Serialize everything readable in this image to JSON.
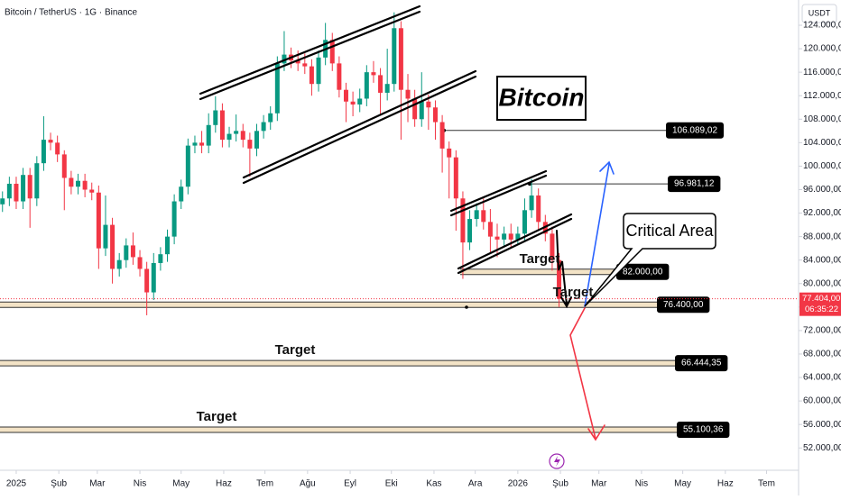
{
  "chart_data": {
    "type": "candlestick",
    "title": "Bitcoin / TetherUS · 1G · Binance",
    "currency": "USDT",
    "up_color": "#089981",
    "down_color": "#f23645",
    "x": [
      -10,
      -5,
      0,
      5,
      10,
      15,
      20,
      25,
      30,
      35,
      40,
      45,
      50,
      55,
      60,
      65,
      70,
      75,
      80,
      85,
      90,
      95,
      100,
      105,
      110,
      115,
      120,
      125,
      130,
      135,
      140,
      145,
      150,
      155,
      160,
      165,
      170,
      175,
      180,
      185,
      190,
      195,
      200,
      205,
      210,
      215,
      220,
      225,
      230,
      235,
      240,
      245,
      250,
      255,
      260,
      265,
      270,
      275,
      280,
      285,
      290,
      295,
      300,
      305,
      310,
      315,
      320,
      325,
      330,
      335,
      340,
      345,
      350,
      355,
      360,
      365,
      370,
      375,
      380,
      385,
      390,
      395
    ],
    "open": [
      93500,
      94500,
      97000,
      94000,
      98500,
      94500,
      100500,
      104500,
      104000,
      102000,
      98000,
      96500,
      97500,
      96000,
      95500,
      86000,
      90000,
      82500,
      84000,
      86500,
      84500,
      82500,
      78500,
      83500,
      85000,
      88000,
      94000,
      96500,
      103500,
      104000,
      103500,
      107000,
      109500,
      104500,
      105500,
      106000,
      104500,
      103000,
      106000,
      107500,
      109000,
      117500,
      119000,
      118000,
      117500,
      117000,
      114000,
      118500,
      121500,
      117500,
      113000,
      111000,
      110500,
      111500,
      116000,
      115500,
      112500,
      114000,
      123500,
      113000,
      111500,
      108000,
      111000,
      110000,
      107500,
      103000,
      101500,
      94500,
      87000,
      91000,
      92500,
      90500,
      88000,
      87500,
      88500,
      87500,
      88500,
      92500,
      95000,
      90500,
      88500,
      84000
    ],
    "high": [
      95700,
      98200,
      98200,
      99700,
      99700,
      101700,
      108500,
      105700,
      105200,
      102700,
      99200,
      98700,
      98700,
      97200,
      96700,
      95000,
      91200,
      85200,
      87700,
      88700,
      85700,
      83700,
      85200,
      86200,
      89200,
      95200,
      97700,
      104700,
      105200,
      106000,
      109000,
      111900,
      110700,
      106700,
      108800,
      107200,
      105700,
      107200,
      108700,
      110200,
      118700,
      123000,
      120200,
      119700,
      119200,
      118200,
      119700,
      124400,
      122700,
      118700,
      114200,
      112700,
      113200,
      117200,
      117900,
      116700,
      120000,
      126200,
      124700,
      115700,
      113000,
      116000,
      112200,
      111200,
      108700,
      104200,
      102700,
      95700,
      92500,
      93700,
      94500,
      92700,
      90200,
      89700,
      90200,
      89700,
      94500,
      97800,
      96200,
      91700,
      89700,
      85200
    ],
    "low": [
      92200,
      93200,
      92700,
      92700,
      89500,
      93200,
      99200,
      102700,
      100700,
      92500,
      95200,
      95200,
      94700,
      94200,
      82500,
      84700,
      80000,
      81200,
      82700,
      83200,
      81200,
      74600,
      77200,
      82200,
      83700,
      86700,
      92700,
      95200,
      102200,
      102200,
      102200,
      105700,
      103200,
      103200,
      104200,
      103200,
      98200,
      101700,
      104700,
      106200,
      107700,
      116200,
      116700,
      116200,
      115700,
      112000,
      112700,
      117200,
      116200,
      111700,
      107500,
      108500,
      109200,
      110200,
      114200,
      108700,
      111200,
      112700,
      104500,
      107500,
      106700,
      106700,
      106200,
      104500,
      98900,
      94500,
      89000,
      80800,
      85700,
      89700,
      89200,
      85200,
      84500,
      86200,
      86200,
      86700,
      87200,
      91200,
      89200,
      87200,
      82200,
      76000
    ],
    "close": [
      94500,
      97000,
      94000,
      98500,
      94500,
      100500,
      104500,
      104000,
      102000,
      98000,
      96500,
      97500,
      96000,
      95500,
      86000,
      90000,
      82500,
      84000,
      86500,
      84500,
      82500,
      78500,
      83500,
      85000,
      88000,
      94000,
      96500,
      103500,
      104000,
      103500,
      107000,
      109500,
      104500,
      105500,
      106000,
      104500,
      103000,
      106000,
      107500,
      109000,
      117500,
      119000,
      118000,
      117500,
      117000,
      114000,
      118500,
      121500,
      117500,
      113000,
      111000,
      110500,
      111500,
      116000,
      115500,
      112500,
      114000,
      123500,
      113000,
      111500,
      108000,
      111000,
      110000,
      107500,
      103000,
      101500,
      94500,
      87000,
      91000,
      92500,
      90500,
      88000,
      87500,
      88500,
      87500,
      88500,
      92500,
      95000,
      90500,
      88500,
      84000,
      77404
    ],
    "xlim": [
      -11.8,
      569.3
    ],
    "xticks": [
      {
        "value": 0,
        "label": "2025"
      },
      {
        "value": 31,
        "label": "Şub"
      },
      {
        "value": 59,
        "label": "Mar"
      },
      {
        "value": 90,
        "label": "Nis"
      },
      {
        "value": 120,
        "label": "May"
      },
      {
        "value": 151,
        "label": "Haz"
      },
      {
        "value": 181,
        "label": "Tem"
      },
      {
        "value": 212,
        "label": "Ağu"
      },
      {
        "value": 243,
        "label": "Eyl"
      },
      {
        "value": 273,
        "label": "Eki"
      },
      {
        "value": 304,
        "label": "Kas"
      },
      {
        "value": 334,
        "label": "Ara"
      },
      {
        "value": 365,
        "label": "2026"
      },
      {
        "value": 396,
        "label": "Şub"
      },
      {
        "value": 424,
        "label": "Mar"
      },
      {
        "value": 455,
        "label": "Nis"
      },
      {
        "value": 485,
        "label": "May"
      },
      {
        "value": 516,
        "label": "Haz"
      },
      {
        "value": 546,
        "label": "Tem"
      }
    ],
    "ylim": [
      48200,
      128300
    ],
    "yticks": [
      {
        "value": 52000,
        "label": "52.000,00"
      },
      {
        "value": 56000,
        "label": "56.000,00"
      },
      {
        "value": 60000,
        "label": "60.000,00"
      },
      {
        "value": 64000,
        "label": "64.000,00"
      },
      {
        "value": 68000,
        "label": "68.000,00"
      },
      {
        "value": 72000,
        "label": "72.000,00"
      },
      {
        "value": 76000,
        "label": "76.000,00"
      },
      {
        "value": 80000,
        "label": "80.000,00"
      },
      {
        "value": 84000,
        "label": "84.000,00"
      },
      {
        "value": 88000,
        "label": "88.000,00"
      },
      {
        "value": 92000,
        "label": "92.000,00"
      },
      {
        "value": 96000,
        "label": "96.000,00"
      },
      {
        "value": 100000,
        "label": "100.000,00"
      },
      {
        "value": 104000,
        "label": "104.000,00"
      },
      {
        "value": 108000,
        "label": "108.000,00"
      },
      {
        "value": 112000,
        "label": "112.000,00"
      },
      {
        "value": 116000,
        "label": "116.000,00"
      },
      {
        "value": 120000,
        "label": "120.000,00"
      },
      {
        "value": 124000,
        "label": "124.000,00"
      }
    ],
    "levels": [
      {
        "value": 106089.02,
        "label": "106.089,02"
      },
      {
        "value": 96981.12,
        "label": "96.981,12"
      },
      {
        "value": 82000,
        "label": "82.000,00"
      },
      {
        "value": 76400,
        "label": "76.400,00"
      },
      {
        "value": 66444.35,
        "label": "66.444,35"
      },
      {
        "value": 55100.36,
        "label": "55.100,36"
      }
    ],
    "last_price": {
      "value": 77404,
      "label": "77.404,00"
    },
    "countdown": "06:35:22",
    "annotations": [
      "Bitcoin",
      "Critical Area",
      "Target",
      "Target",
      "Target",
      "Target"
    ]
  }
}
